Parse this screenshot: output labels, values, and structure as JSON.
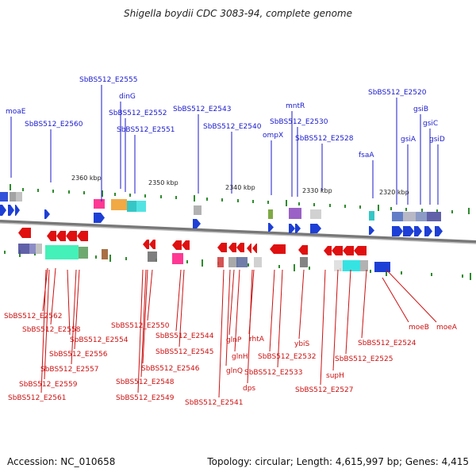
{
  "title": "Shigella boydii CDC 3083-94, complete genome",
  "footer": {
    "accession": "Accession: NC_010658",
    "summary": "Topology: circular; Length: 4,615,997 bp; Genes: 4,415"
  },
  "colors": {
    "top_labels": "#1a1acc",
    "bottom_labels": "#cc1111",
    "forward_arrows": "#1d3fd6",
    "reverse_arrows": "#e01010",
    "tick_marks": "#2e8b2e",
    "backbone": "#777777"
  },
  "scale_labels": [
    "2360 kbp",
    "2350 kbp",
    "2340 kbp",
    "2330 kbp",
    "2320 kbp"
  ],
  "top_genes": [
    "moaE",
    "SbBS512_E2560",
    "SbBS512_E2555",
    "dinG",
    "SbBS512_E2552",
    "SbBS512_E2551",
    "SbBS512_E2543",
    "SbBS512_E2540",
    "ompX",
    "mntR",
    "SbBS512_E2530",
    "SbBS512_E2528",
    "fsaA",
    "SbBS512_E2520",
    "gsiB",
    "gsiA",
    "gsiC",
    "gsiD"
  ],
  "bottom_genes": [
    "SbBS512_E2562",
    "SbBS512_E2558",
    "SbBS512_E2554",
    "SbBS512_E2556",
    "SbBS512_E2557",
    "SbBS512_E2559",
    "SbBS512_E2561",
    "SbBS512_E2550",
    "SbBS512_E2544",
    "SbBS512_E2545",
    "SbBS512_E2546",
    "SbBS512_E2548",
    "SbBS512_E2549",
    "SbBS512_E2541",
    "glnP",
    "glnH",
    "glnQ",
    "dps",
    "rhtA",
    "SbBS512_E2532",
    "SbBS512_E2533",
    "ybiS",
    "supH",
    "SbBS512_E2527",
    "SbBS512_E2525",
    "SbBS512_E2524",
    "moeB",
    "moeA"
  ]
}
